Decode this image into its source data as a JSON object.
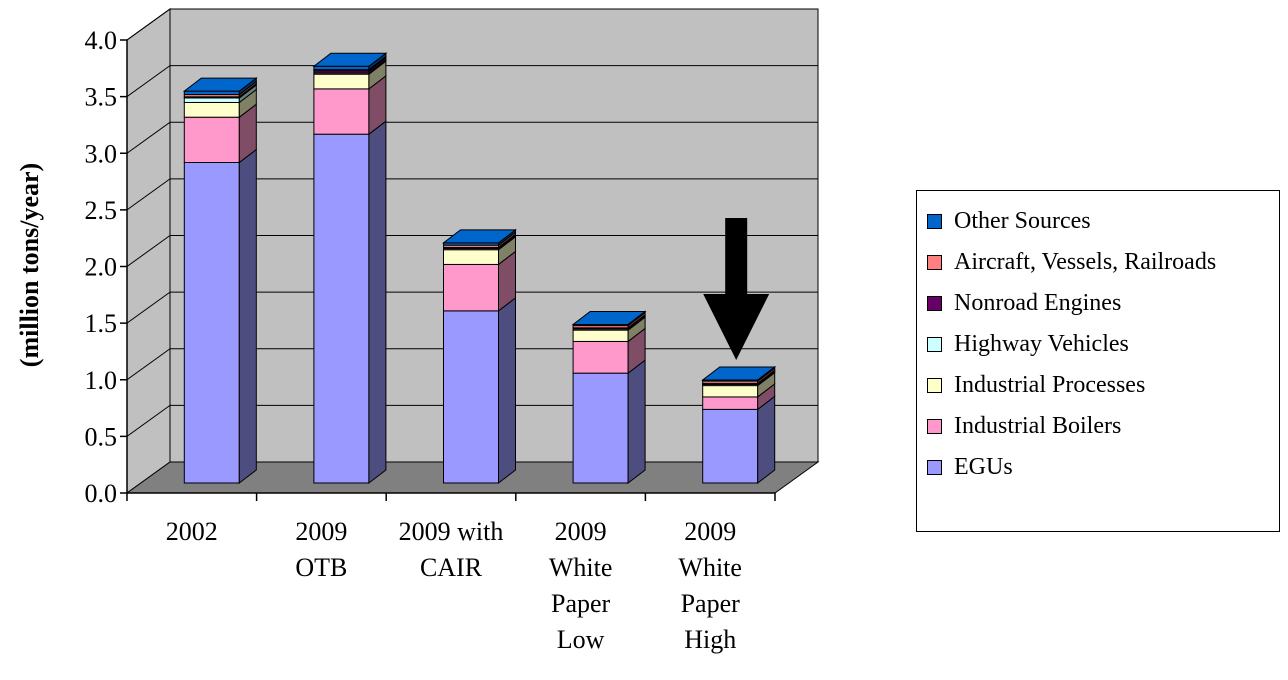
{
  "chart_data": {
    "type": "bar",
    "stacked": true,
    "three_d": true,
    "ylabel": "(million tons/year)",
    "ylim": [
      0,
      4.0
    ],
    "y_ticks": [
      "0.0",
      "0.5",
      "1.0",
      "1.5",
      "2.0",
      "2.5",
      "3.0",
      "3.5",
      "4.0"
    ],
    "grid": true,
    "legend_position": "right",
    "categories": [
      [
        "2002"
      ],
      [
        "2009",
        "OTB"
      ],
      [
        "2009 with",
        "CAIR"
      ],
      [
        "2009",
        "White",
        "Paper",
        "Low"
      ],
      [
        "2009",
        "White",
        "Paper",
        "High"
      ]
    ],
    "series": [
      {
        "name": "EGUs",
        "color": "#9999ff",
        "side": "#4d4d80",
        "values": [
          2.83,
          3.08,
          1.52,
          0.97,
          0.65
        ]
      },
      {
        "name": "Industrial Boilers",
        "color": "#ff99cc",
        "side": "#804d66",
        "values": [
          0.4,
          0.4,
          0.41,
          0.28,
          0.11
        ]
      },
      {
        "name": "Industrial Processes",
        "color": "#ffffcc",
        "side": "#808066",
        "values": [
          0.13,
          0.13,
          0.13,
          0.1,
          0.1
        ]
      },
      {
        "name": "Highway Vehicles",
        "color": "#ccffff",
        "side": "#668080",
        "values": [
          0.04,
          0.01,
          0.01,
          0.01,
          0.01
        ]
      },
      {
        "name": "Nonroad Engines",
        "color": "#660066",
        "side": "#330033",
        "values": [
          0.01,
          0.02,
          0.01,
          0.01,
          0.01
        ]
      },
      {
        "name": "Aircraft, Vessels, Railroads",
        "color": "#ff8080",
        "side": "#804040",
        "values": [
          0.02,
          0.01,
          0.02,
          0.02,
          0.02
        ]
      },
      {
        "name": "Other Sources",
        "color": "#0066cc",
        "side": "#003366",
        "values": [
          0.03,
          0.03,
          0.02,
          0.01,
          0.01
        ]
      }
    ],
    "annotation": {
      "type": "arrow-down",
      "target_category_index": 4,
      "color": "#000000"
    }
  }
}
